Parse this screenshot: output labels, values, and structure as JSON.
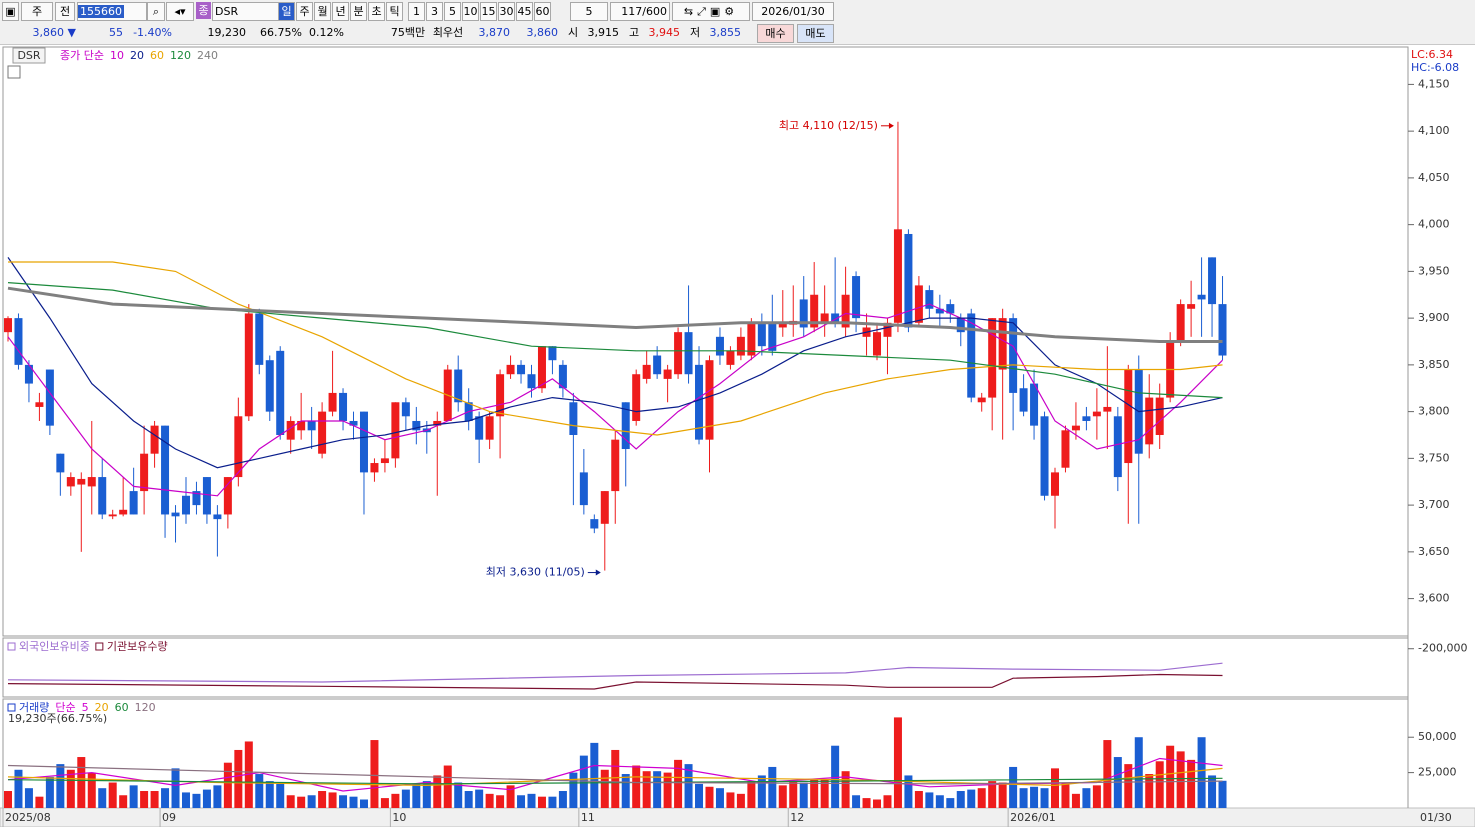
{
  "toolbar": {
    "market": "주",
    "prev": "전",
    "code": "155660",
    "icon": "종",
    "name": "DSR",
    "periods": [
      "일",
      "주",
      "월",
      "년",
      "분",
      "초",
      "틱"
    ],
    "minutes": [
      "1",
      "3",
      "5",
      "10",
      "15",
      "30",
      "45",
      "60"
    ],
    "unit": "5",
    "count": "117/600",
    "date": "2026/01/30"
  },
  "quote": {
    "price": "3,860 ▼",
    "change": "55",
    "rate": "-1.40%",
    "volume": "19,230",
    "vol_ratio": "66.75%",
    "turnover": "0.12%",
    "amount": "75백만",
    "best": "최우선",
    "ask": "3,870",
    "bid": "3,860",
    "open_label": "시",
    "open": "3,915",
    "high_label": "고",
    "high": "3,945",
    "low_label": "저",
    "low": "3,855",
    "buy": "매수",
    "sell": "매도"
  },
  "chart_data": [
    {
      "type": "candlestick",
      "title": "DSR",
      "legend_label": "종가 단순",
      "up_color": "#ee1c1c",
      "down_color": "#1a5ed2",
      "open": [
        3885,
        3900,
        3850,
        3805,
        3845,
        3755,
        3720,
        3722,
        3720,
        3730,
        3688,
        3690,
        3715,
        3715,
        3755,
        3785,
        3692,
        3710,
        3715,
        3730,
        3690,
        3690,
        3730,
        3795,
        3905,
        3855,
        3865,
        3770,
        3780,
        3790,
        3755,
        3800,
        3820,
        3790,
        3800,
        3735,
        3745,
        3750,
        3810,
        3790,
        3782,
        3785,
        3790,
        3845,
        3810,
        3795,
        3770,
        3795,
        3840,
        3850,
        3840,
        3825,
        3870,
        3850,
        3810,
        3735,
        3685,
        3680,
        3715,
        3810,
        3790,
        3835,
        3860,
        3835,
        3840,
        3885,
        3850,
        3770,
        3880,
        3850,
        3860,
        3860,
        3895,
        3895,
        3890,
        3893,
        3920,
        3890,
        3895,
        3905,
        3890,
        3945,
        3880,
        3860,
        3880,
        3895,
        3990,
        3895,
        3930,
        3910,
        3915,
        3900,
        3905,
        3810,
        3815,
        3845,
        3900,
        3825,
        3830,
        3795,
        3710,
        3740,
        3780,
        3795,
        3795,
        3800,
        3795,
        3745,
        3845,
        3765,
        3775,
        3815,
        3875,
        3910,
        3925,
        3965,
        3915
      ],
      "high": [
        3902,
        3905,
        3855,
        3820,
        3845,
        3755,
        3735,
        3735,
        3790,
        3750,
        3695,
        3730,
        3740,
        3785,
        3790,
        3785,
        3700,
        3730,
        3725,
        3730,
        3700,
        3730,
        3815,
        3915,
        3910,
        3860,
        3870,
        3795,
        3820,
        3805,
        3810,
        3865,
        3825,
        3800,
        3800,
        3750,
        3770,
        3810,
        3815,
        3805,
        3790,
        3800,
        3850,
        3860,
        3825,
        3800,
        3800,
        3845,
        3860,
        3855,
        3850,
        3870,
        3870,
        3855,
        3820,
        3760,
        3690,
        3715,
        3780,
        3810,
        3845,
        3865,
        3870,
        3850,
        3890,
        3935,
        3870,
        3860,
        3890,
        3870,
        3890,
        3900,
        3905,
        3925,
        3930,
        3935,
        3945,
        3960,
        3935,
        3965,
        3955,
        3950,
        3905,
        3895,
        3900,
        4110,
        3995,
        3945,
        3935,
        3925,
        3920,
        3905,
        3910,
        3820,
        3900,
        3910,
        3905,
        3840,
        3845,
        3800,
        3740,
        3785,
        3810,
        3805,
        3825,
        3870,
        3805,
        3850,
        3860,
        3840,
        3830,
        3885,
        3920,
        3940,
        3965,
        3965,
        3945
      ],
      "low": [
        3875,
        3845,
        3810,
        3790,
        3775,
        3710,
        3710,
        3650,
        3690,
        3685,
        3685,
        3688,
        3690,
        3690,
        3740,
        3665,
        3660,
        3680,
        3690,
        3680,
        3645,
        3675,
        3720,
        3790,
        3840,
        3790,
        3770,
        3755,
        3770,
        3760,
        3750,
        3795,
        3780,
        3770,
        3690,
        3725,
        3735,
        3740,
        3780,
        3765,
        3755,
        3710,
        3790,
        3800,
        3780,
        3745,
        3760,
        3750,
        3835,
        3830,
        3815,
        3820,
        3840,
        3815,
        3700,
        3690,
        3670,
        3630,
        3680,
        3720,
        3785,
        3830,
        3835,
        3810,
        3835,
        3830,
        3765,
        3735,
        3850,
        3845,
        3855,
        3855,
        3860,
        3860,
        3880,
        3880,
        3880,
        3885,
        3880,
        3890,
        3880,
        3885,
        3860,
        3855,
        3840,
        3885,
        3885,
        3890,
        3900,
        3890,
        3895,
        3870,
        3810,
        3800,
        3780,
        3770,
        3780,
        3795,
        3770,
        3705,
        3675,
        3735,
        3770,
        3780,
        3770,
        3760,
        3715,
        3680,
        3680,
        3750,
        3760,
        3810,
        3870,
        3880,
        3880,
        3880,
        3855
      ],
      "close": [
        3900,
        3850,
        3830,
        3810,
        3785,
        3735,
        3730,
        3728,
        3730,
        3690,
        3690,
        3695,
        3690,
        3755,
        3785,
        3690,
        3688,
        3690,
        3700,
        3690,
        3685,
        3730,
        3795,
        3905,
        3850,
        3800,
        3775,
        3790,
        3790,
        3780,
        3800,
        3820,
        3790,
        3785,
        3735,
        3745,
        3750,
        3810,
        3795,
        3780,
        3778,
        3790,
        3845,
        3810,
        3790,
        3770,
        3795,
        3840,
        3850,
        3840,
        3825,
        3870,
        3855,
        3825,
        3775,
        3700,
        3675,
        3715,
        3770,
        3760,
        3840,
        3850,
        3840,
        3845,
        3885,
        3840,
        3770,
        3855,
        3860,
        3865,
        3880,
        3895,
        3870,
        3865,
        3895,
        3897,
        3890,
        3925,
        3905,
        3895,
        3925,
        3900,
        3890,
        3885,
        3895,
        3995,
        3890,
        3935,
        3910,
        3905,
        3905,
        3885,
        3815,
        3815,
        3900,
        3900,
        3820,
        3800,
        3785,
        3710,
        3735,
        3780,
        3785,
        3790,
        3800,
        3805,
        3730,
        3845,
        3755,
        3815,
        3815,
        3875,
        3915,
        3915,
        3920,
        3915,
        3860
      ],
      "ylim": [
        3560,
        4190
      ],
      "yticks": [
        {
          "value": 3600,
          "label": "3,600"
        },
        {
          "value": 3650,
          "label": "3,650"
        },
        {
          "value": 3700,
          "label": "3,700"
        },
        {
          "value": 3750,
          "label": "3,750"
        },
        {
          "value": 3800,
          "label": "3,800"
        },
        {
          "value": 3850,
          "label": "3,850"
        },
        {
          "value": 3900,
          "label": "3,900"
        },
        {
          "value": 3950,
          "label": "3,950"
        },
        {
          "value": 4000,
          "label": "4,000"
        },
        {
          "value": 4050,
          "label": "4,050"
        },
        {
          "value": 4100,
          "label": "4,100"
        },
        {
          "value": 4150,
          "label": "4,150"
        }
      ],
      "series": [
        {
          "name": "10",
          "color": "#c800c8",
          "x": [
            0,
            4,
            8,
            12,
            16,
            20,
            24,
            28,
            32,
            36,
            40,
            44,
            48,
            52,
            56,
            60,
            64,
            68,
            72,
            76,
            80,
            84,
            88,
            92,
            96,
            100,
            104,
            108,
            112,
            116
          ],
          "values": [
            3880,
            3820,
            3760,
            3720,
            3715,
            3710,
            3760,
            3790,
            3790,
            3770,
            3780,
            3800,
            3810,
            3835,
            3800,
            3760,
            3800,
            3830,
            3865,
            3880,
            3905,
            3900,
            3915,
            3895,
            3870,
            3790,
            3760,
            3770,
            3810,
            3855
          ]
        },
        {
          "name": "20",
          "color": "#0a1e8c",
          "x": [
            0,
            4,
            8,
            12,
            16,
            20,
            24,
            28,
            32,
            36,
            40,
            44,
            48,
            52,
            56,
            60,
            64,
            68,
            72,
            76,
            80,
            84,
            88,
            92,
            96,
            100,
            104,
            108,
            112,
            116
          ],
          "values": [
            3965,
            3900,
            3830,
            3790,
            3760,
            3740,
            3750,
            3760,
            3770,
            3775,
            3785,
            3790,
            3805,
            3815,
            3810,
            3800,
            3805,
            3820,
            3840,
            3865,
            3880,
            3890,
            3900,
            3900,
            3895,
            3850,
            3830,
            3800,
            3805,
            3815
          ]
        },
        {
          "name": "60",
          "color": "#e8a400",
          "x": [
            0,
            10,
            16,
            22,
            30,
            38,
            46,
            54,
            62,
            70,
            78,
            84,
            90,
            96,
            104,
            112,
            116
          ],
          "values": [
            3960,
            3960,
            3950,
            3915,
            3880,
            3835,
            3800,
            3785,
            3775,
            3790,
            3820,
            3835,
            3845,
            3850,
            3845,
            3845,
            3850
          ]
        },
        {
          "name": "120",
          "color": "#1c8a3c",
          "x": [
            0,
            10,
            20,
            30,
            40,
            50,
            60,
            70,
            80,
            90,
            100,
            108,
            116
          ],
          "values": [
            3938,
            3930,
            3910,
            3900,
            3890,
            3870,
            3865,
            3865,
            3860,
            3855,
            3840,
            3820,
            3815
          ]
        },
        {
          "name": "240",
          "color": "#808080",
          "x": [
            0,
            10,
            20,
            30,
            40,
            50,
            60,
            70,
            80,
            90,
            100,
            110,
            116
          ],
          "values": [
            3932,
            3915,
            3910,
            3905,
            3900,
            3895,
            3890,
            3895,
            3895,
            3890,
            3880,
            3875,
            3875
          ]
        }
      ],
      "annotations": [
        {
          "text": "최고 4,110 (12/15)",
          "x": 85,
          "y": 4110,
          "color": "#d40000"
        },
        {
          "text": "최저 3,630 (11/05)",
          "x": 57,
          "y": 3630,
          "color": "#0a1e8c"
        }
      ],
      "lc_label": "LC:6.34",
      "hc_label": "HC:-6.08",
      "grid": false
    },
    {
      "type": "line",
      "ylim": [
        -290000,
        -180000
      ],
      "yticks": [
        {
          "value": -200000,
          "label": "-200,000"
        }
      ],
      "series": [
        {
          "name": "외국인보유비중",
          "color": "#9c6cd0",
          "x": [
            0,
            30,
            60,
            80,
            86,
            96,
            110,
            116
          ],
          "values": [
            -258000,
            -262000,
            -250000,
            -245000,
            -235000,
            -238000,
            -240000,
            -227000
          ]
        },
        {
          "name": "기관보유수량",
          "color": "#7a1030",
          "x": [
            0,
            30,
            56,
            60,
            80,
            84,
            94,
            96,
            104,
            110,
            116
          ],
          "values": [
            -265000,
            -270000,
            -275000,
            -262000,
            -268000,
            -272000,
            -272000,
            -255000,
            -252000,
            -248000,
            -250000
          ]
        }
      ]
    },
    {
      "type": "bar",
      "title": "거래량",
      "legend_label": "단순",
      "note": "19,230주(66.75%)",
      "categories": [
        "2025/08",
        null,
        null,
        null,
        null,
        null,
        null,
        null,
        null,
        null,
        null,
        null,
        null,
        null,
        null,
        "09",
        null,
        null,
        null,
        null,
        null,
        null,
        null,
        null,
        null,
        null,
        null,
        null,
        null,
        null,
        null,
        null,
        null,
        null,
        null,
        null,
        null,
        "10",
        null,
        null,
        null,
        null,
        null,
        null,
        null,
        null,
        null,
        null,
        null,
        null,
        null,
        null,
        null,
        null,
        null,
        "11",
        null,
        null,
        null,
        null,
        null,
        null,
        null,
        null,
        null,
        null,
        null,
        null,
        null,
        null,
        null,
        null,
        null,
        null,
        null,
        "12",
        null,
        null,
        null,
        null,
        null,
        null,
        null,
        null,
        null,
        null,
        null,
        null,
        null,
        null,
        null,
        null,
        null,
        null,
        null,
        null,
        "2026/01",
        null,
        null,
        null,
        null,
        null,
        null,
        null,
        null,
        null,
        null,
        null,
        null,
        null,
        null,
        null,
        null,
        null,
        null,
        null,
        null
      ],
      "x_end_label": "01/30",
      "values": [
        12000,
        27000,
        14000,
        8000,
        22000,
        31000,
        27000,
        36000,
        25000,
        14000,
        18000,
        9000,
        16000,
        12000,
        12000,
        14000,
        28000,
        11000,
        10000,
        13000,
        16000,
        32000,
        41000,
        47000,
        24000,
        19000,
        17000,
        9000,
        8000,
        9000,
        12000,
        11000,
        9000,
        8000,
        6000,
        48000,
        7000,
        10000,
        13000,
        17000,
        19000,
        23000,
        30000,
        18000,
        12000,
        13000,
        10000,
        9000,
        16000,
        9000,
        10000,
        8000,
        8000,
        12000,
        25000,
        37000,
        46000,
        27000,
        41000,
        24000,
        30000,
        26000,
        26000,
        25000,
        34000,
        31000,
        17000,
        15000,
        14000,
        11000,
        10000,
        19000,
        23000,
        29000,
        16000,
        19000,
        18000,
        20000,
        20000,
        44000,
        26000,
        9000,
        7000,
        6000,
        9000,
        64000,
        23000,
        12000,
        11000,
        9000,
        7000,
        12000,
        13000,
        14000,
        19000,
        18000,
        29000,
        14000,
        15000,
        14000,
        28000,
        18000,
        10000,
        14000,
        16000,
        48000,
        36000,
        31000,
        50000,
        24000,
        33000,
        44000,
        40000,
        34000,
        50000,
        23000,
        19230
      ],
      "ylim": [
        0,
        77000
      ],
      "yticks": [
        {
          "value": 25000,
          "label": "25,000"
        },
        {
          "value": 50000,
          "label": "50,000"
        }
      ],
      "series": [
        {
          "name": "5",
          "color": "#d000d0",
          "x": [
            0,
            8,
            16,
            24,
            32,
            40,
            48,
            56,
            64,
            72,
            80,
            88,
            96,
            104,
            110,
            116
          ],
          "values": [
            20000,
            25000,
            16000,
            25000,
            12000,
            18000,
            13000,
            30000,
            28000,
            18000,
            22000,
            15000,
            17000,
            18000,
            35000,
            30000
          ]
        },
        {
          "name": "20",
          "color": "#e8a400",
          "x": [
            0,
            20,
            40,
            60,
            80,
            100,
            116
          ],
          "values": [
            22000,
            18000,
            16000,
            22000,
            20000,
            16000,
            28000
          ]
        },
        {
          "name": "60",
          "color": "#1c8a3c",
          "x": [
            0,
            40,
            80,
            116
          ],
          "values": [
            20000,
            17000,
            19000,
            21000
          ]
        },
        {
          "name": "120",
          "color": "#8a7080",
          "x": [
            0,
            30,
            60,
            90,
            116
          ],
          "values": [
            30000,
            24000,
            18000,
            17000,
            19000
          ]
        }
      ]
    }
  ]
}
